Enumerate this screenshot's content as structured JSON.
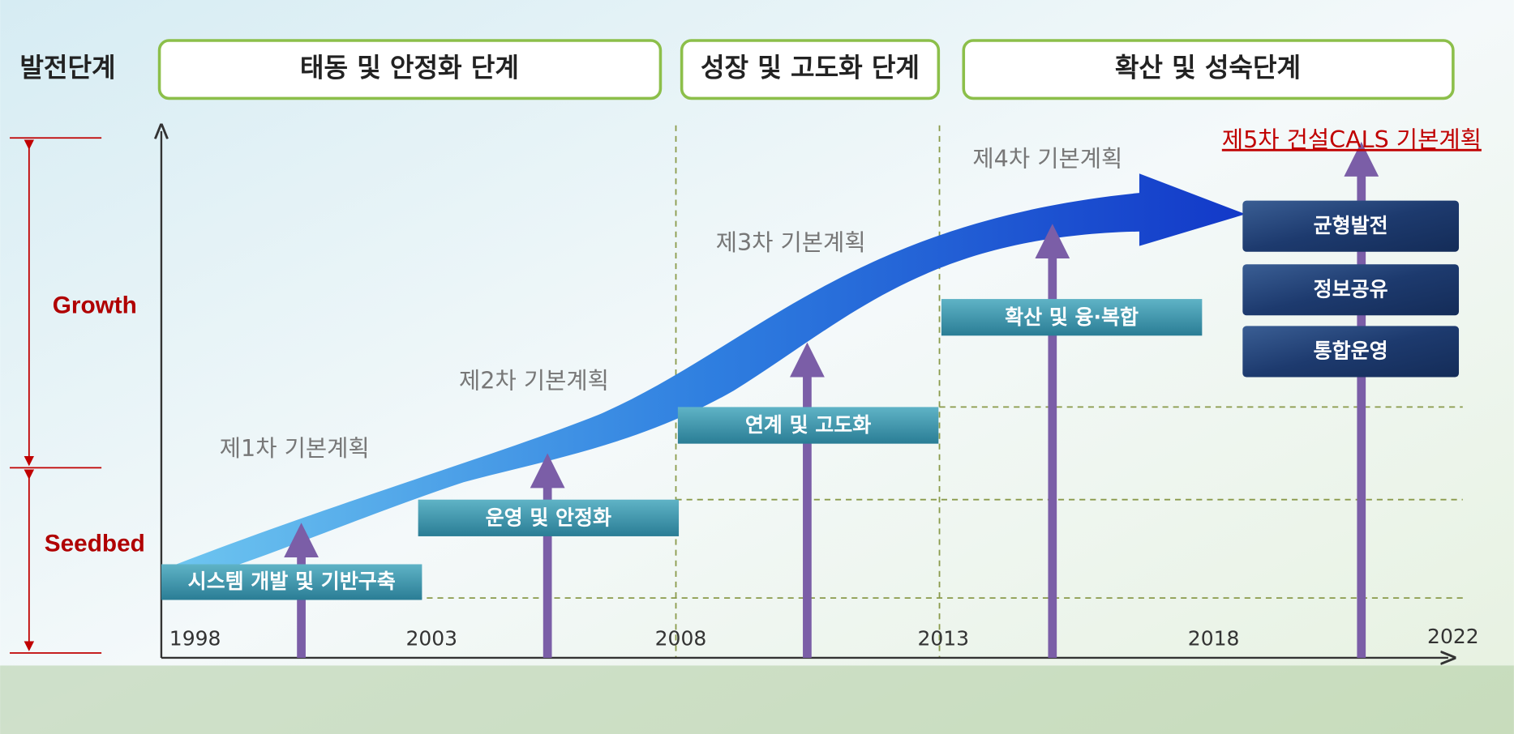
{
  "stage_label": "발전단계",
  "stages": [
    "태동 및 안정화 단계",
    "성장 및 고도화 단계",
    "확산 및 성숙단계"
  ],
  "levels": [
    "Growth",
    "Seedbed"
  ],
  "years": [
    "1998",
    "2003",
    "2008",
    "2013",
    "2018",
    "2022"
  ],
  "plans": [
    "제1차 기본계획",
    "제2차 기본계획",
    "제3차 기본계획",
    "제4차 기본계획",
    "제5차 건설CALS 기본계획"
  ],
  "phases": [
    "시스템 개발 및 기반구축",
    "운영 및 안정화",
    "연계 및 고도화",
    "확산 및 융·복합"
  ],
  "goals": [
    "균형발전",
    "정보공유",
    "통합운영"
  ]
}
